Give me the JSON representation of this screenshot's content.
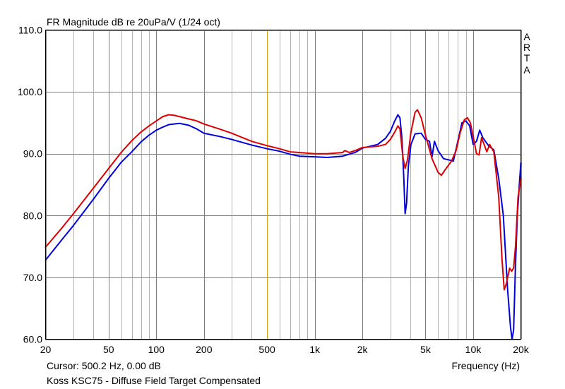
{
  "header": {
    "title": "FR Magnitude dB re 20uPa/V (1/24 oct)",
    "brand_letters": [
      "A",
      "R",
      "T",
      "A"
    ]
  },
  "footer": {
    "cursor": "Cursor: 500.2 Hz, 0.00 dB",
    "description": "Koss KSC75 - Diffuse Field Target Compensated"
  },
  "chart_data": {
    "type": "line",
    "title": "FR Magnitude dB re 20uPa/V (1/24 oct)",
    "xlabel": "Frequency (Hz)",
    "ylabel": "",
    "xscale": "log",
    "xlim": [
      20,
      20000
    ],
    "ylim": [
      60,
      110
    ],
    "grid": true,
    "x_ticks": [
      20,
      50,
      100,
      200,
      500,
      1000,
      2000,
      5000,
      10000,
      20000
    ],
    "x_tick_labels": [
      "20",
      "50",
      "100",
      "200",
      "500",
      "1k",
      "2k",
      "5k",
      "10k",
      "20k"
    ],
    "y_ticks": [
      60,
      70,
      80,
      90,
      100,
      110
    ],
    "y_tick_labels": [
      "60.0",
      "70.0",
      "80.0",
      "90.0",
      "100.0",
      "110.0"
    ],
    "cursor": {
      "x": 500.2,
      "color": "#d4a017"
    },
    "series": [
      {
        "color": "#0000dd",
        "points": [
          [
            20,
            72.8
          ],
          [
            25,
            75.9
          ],
          [
            30,
            78.4
          ],
          [
            40,
            82.6
          ],
          [
            50,
            86.0
          ],
          [
            60,
            88.6
          ],
          [
            70,
            90.3
          ],
          [
            80,
            91.9
          ],
          [
            90,
            93.0
          ],
          [
            100,
            93.8
          ],
          [
            110,
            94.3
          ],
          [
            120,
            94.7
          ],
          [
            140,
            94.9
          ],
          [
            160,
            94.6
          ],
          [
            180,
            94.0
          ],
          [
            200,
            93.3
          ],
          [
            250,
            92.8
          ],
          [
            300,
            92.3
          ],
          [
            400,
            91.4
          ],
          [
            500,
            90.8
          ],
          [
            600,
            90.4
          ],
          [
            700,
            89.9
          ],
          [
            800,
            89.6
          ],
          [
            1000,
            89.5
          ],
          [
            1200,
            89.4
          ],
          [
            1500,
            89.6
          ],
          [
            1800,
            90.2
          ],
          [
            2000,
            90.9
          ],
          [
            2500,
            91.5
          ],
          [
            2800,
            92.5
          ],
          [
            3000,
            93.6
          ],
          [
            3200,
            95.3
          ],
          [
            3350,
            96.3
          ],
          [
            3450,
            95.8
          ],
          [
            3550,
            92.5
          ],
          [
            3650,
            86.0
          ],
          [
            3720,
            80.3
          ],
          [
            3800,
            82.0
          ],
          [
            3900,
            88.0
          ],
          [
            4050,
            91.5
          ],
          [
            4300,
            93.2
          ],
          [
            4700,
            93.3
          ],
          [
            5000,
            92.3
          ],
          [
            5300,
            92.0
          ],
          [
            5500,
            89.5
          ],
          [
            5700,
            92.0
          ],
          [
            6000,
            90.5
          ],
          [
            6500,
            89.2
          ],
          [
            7000,
            89.0
          ],
          [
            7500,
            88.8
          ],
          [
            8000,
            92.0
          ],
          [
            8500,
            95.0
          ],
          [
            9000,
            95.3
          ],
          [
            9500,
            94.5
          ],
          [
            10000,
            91.5
          ],
          [
            10500,
            92.0
          ],
          [
            11000,
            93.8
          ],
          [
            11500,
            92.6
          ],
          [
            12500,
            91.3
          ],
          [
            13500,
            90.6
          ],
          [
            14500,
            86.0
          ],
          [
            15500,
            80.0
          ],
          [
            16500,
            68.0
          ],
          [
            17200,
            62.0
          ],
          [
            17600,
            60.0
          ],
          [
            18000,
            61.5
          ],
          [
            18500,
            72.0
          ],
          [
            19000,
            80.0
          ],
          [
            19500,
            84.5
          ],
          [
            20000,
            88.5
          ]
        ]
      },
      {
        "color": "#dd0000",
        "points": [
          [
            20,
            74.9
          ],
          [
            25,
            77.8
          ],
          [
            30,
            80.3
          ],
          [
            40,
            84.4
          ],
          [
            50,
            87.6
          ],
          [
            60,
            90.2
          ],
          [
            70,
            92.1
          ],
          [
            80,
            93.5
          ],
          [
            90,
            94.5
          ],
          [
            100,
            95.3
          ],
          [
            110,
            96.0
          ],
          [
            120,
            96.3
          ],
          [
            130,
            96.2
          ],
          [
            150,
            95.8
          ],
          [
            180,
            95.3
          ],
          [
            200,
            94.8
          ],
          [
            250,
            94.0
          ],
          [
            300,
            93.3
          ],
          [
            400,
            92.0
          ],
          [
            500,
            91.3
          ],
          [
            600,
            90.8
          ],
          [
            700,
            90.3
          ],
          [
            800,
            90.2
          ],
          [
            1000,
            90.0
          ],
          [
            1200,
            90.0
          ],
          [
            1500,
            90.2
          ],
          [
            1550,
            90.5
          ],
          [
            1650,
            90.2
          ],
          [
            1800,
            90.5
          ],
          [
            2000,
            91.0
          ],
          [
            2500,
            91.2
          ],
          [
            2800,
            91.5
          ],
          [
            3000,
            92.3
          ],
          [
            3200,
            93.5
          ],
          [
            3350,
            94.5
          ],
          [
            3450,
            94.0
          ],
          [
            3600,
            89.5
          ],
          [
            3720,
            87.6
          ],
          [
            3850,
            89.0
          ],
          [
            4050,
            93.5
          ],
          [
            4300,
            96.7
          ],
          [
            4450,
            97.1
          ],
          [
            4700,
            95.8
          ],
          [
            5000,
            93.0
          ],
          [
            5500,
            89.2
          ],
          [
            6000,
            87.0
          ],
          [
            6300,
            86.5
          ],
          [
            6700,
            87.5
          ],
          [
            7300,
            88.8
          ],
          [
            7800,
            90.5
          ],
          [
            8300,
            93.5
          ],
          [
            8800,
            95.5
          ],
          [
            9200,
            95.8
          ],
          [
            9600,
            95.0
          ],
          [
            10000,
            92.8
          ],
          [
            10500,
            90.0
          ],
          [
            10900,
            89.8
          ],
          [
            11300,
            92.6
          ],
          [
            11600,
            91.8
          ],
          [
            12200,
            90.3
          ],
          [
            12700,
            91.5
          ],
          [
            13500,
            90.3
          ],
          [
            14500,
            83.0
          ],
          [
            15200,
            73.0
          ],
          [
            15700,
            68.0
          ],
          [
            16200,
            69.0
          ],
          [
            17000,
            71.5
          ],
          [
            17500,
            71.0
          ],
          [
            18000,
            71.5
          ],
          [
            18500,
            75.0
          ],
          [
            19200,
            83.0
          ],
          [
            20000,
            86.0
          ]
        ]
      }
    ]
  }
}
